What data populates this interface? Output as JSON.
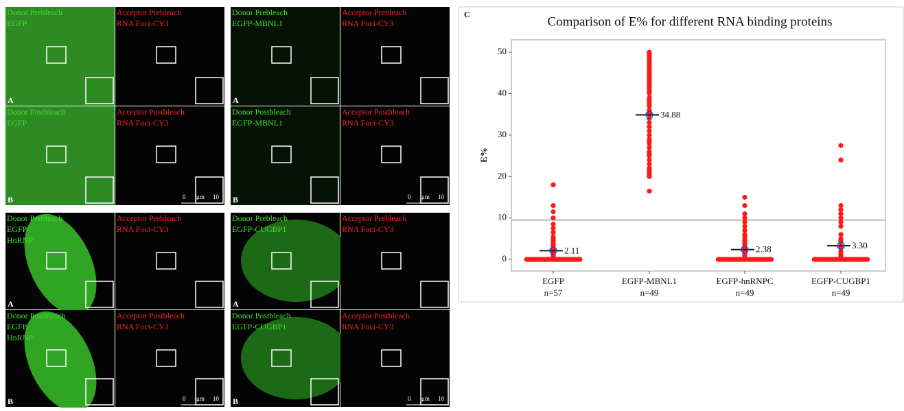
{
  "figure": {
    "panels": [
      {
        "cells": [
          {
            "lines": [
              "Donor Prebleach",
              "EGFP"
            ],
            "letter": "A"
          },
          {
            "lines": [
              "Acceptor Prebleach",
              "RNA Foci-CY3"
            ]
          },
          {
            "lines": [
              "Donor Postbleach",
              "EGFP"
            ],
            "letter": "B"
          },
          {
            "lines": [
              "Acceptor Postbleach",
              "RNA Foci-CY3"
            ],
            "scale": [
              "0",
              "μm",
              "10"
            ]
          }
        ]
      },
      {
        "cells": [
          {
            "lines": [
              "Donor Prebleach",
              "EGFP-MBNL1"
            ],
            "letter": "A"
          },
          {
            "lines": [
              "Acceptor Prebleach",
              "RNA Foci-CY3"
            ]
          },
          {
            "lines": [
              "Donor Postbleach",
              "EGFP-MBNL1"
            ],
            "letter": "B"
          },
          {
            "lines": [
              "Acceptor Postbleach",
              "RNA Foci-CY3"
            ],
            "scale": [
              "0",
              "μm",
              "10"
            ]
          }
        ]
      },
      {
        "cells": [
          {
            "lines": [
              "Donor Prebleach",
              "EGFP-",
              "HnRNP"
            ],
            "letter": "A"
          },
          {
            "lines": [
              "Acceptor Prebleach",
              "RNA Foci-CY3"
            ]
          },
          {
            "lines": [
              "Donor Postbleach",
              "EGFP-",
              "HnRNP"
            ],
            "letter": "B"
          },
          {
            "lines": [
              "Acceptor Postbleach",
              "RNA Foci-CY3"
            ],
            "scale": [
              "0",
              "μm",
              "10"
            ]
          }
        ]
      },
      {
        "cells": [
          {
            "lines": [
              "Donor Prebleach",
              "EGFP-CUGBP1"
            ],
            "letter": "A"
          },
          {
            "lines": [
              "Acceptor Prebleach",
              "RNA Foci-CY3"
            ]
          },
          {
            "lines": [
              "Donor Postbleach",
              "EGFP-CUGBP1"
            ],
            "letter": "B"
          },
          {
            "lines": [
              "Acceptor Postbleach",
              "RNA Foci-CY3"
            ],
            "scale": [
              "0",
              "μm",
              "10"
            ]
          }
        ]
      }
    ]
  },
  "chart_data": {
    "type": "dot",
    "panel_letter": "C",
    "title": "Comparison of E% for different RNA binding proteins",
    "y_label": "E%",
    "categories": [
      "EGFP",
      "EGFP-MBNL1",
      "EGFP-hnRNPC",
      "EGFP-CUGBP1"
    ],
    "n_labels": [
      "n=57",
      "n=49",
      "n=49",
      "n=49"
    ],
    "points": [
      [
        0,
        0,
        0,
        0,
        0,
        0,
        0,
        0,
        0,
        0,
        0,
        0,
        0,
        0,
        0,
        0,
        0,
        0,
        0,
        0,
        0,
        0,
        0,
        0,
        0,
        0,
        0,
        0,
        0,
        0,
        0,
        0,
        0,
        0,
        0,
        0.5,
        0.8,
        1,
        1.3,
        1.6,
        2,
        2.3,
        2.6,
        3,
        3.3,
        3.6,
        4,
        4.5,
        5,
        5.5,
        6.5,
        7.5,
        8.5,
        10,
        11.5,
        13,
        18
      ],
      [
        16.5,
        20,
        20.5,
        21,
        21.5,
        22,
        23,
        24,
        25,
        25.5,
        26,
        27,
        28,
        28.5,
        29,
        30,
        31,
        32,
        33,
        34,
        35,
        35.5,
        36,
        37,
        37.5,
        38,
        38.5,
        39,
        40,
        40.5,
        41,
        41.5,
        42,
        42.5,
        43,
        43.5,
        44,
        44.5,
        45,
        45.5,
        46,
        46.5,
        47,
        47.5,
        48,
        48.5,
        49,
        49.5,
        50
      ],
      [
        0,
        0,
        0,
        0,
        0,
        0,
        0,
        0,
        0,
        0,
        0,
        0,
        0,
        0,
        0,
        0,
        0,
        0,
        0,
        0,
        0,
        0,
        0,
        0,
        0,
        0,
        0,
        0,
        0,
        0,
        0.5,
        1,
        1.5,
        2,
        2.5,
        3,
        3.5,
        4,
        4.5,
        5,
        5.5,
        6,
        7,
        8,
        9,
        10,
        11,
        13,
        15
      ],
      [
        0,
        0,
        0,
        0,
        0,
        0,
        0,
        0,
        0,
        0,
        0,
        0,
        0,
        0,
        0,
        0,
        0,
        0,
        0,
        0,
        0,
        0,
        0,
        0,
        0,
        0,
        0,
        0,
        0,
        0,
        0,
        0,
        0.5,
        1,
        1.5,
        2,
        3,
        4,
        4.5,
        5,
        6,
        8,
        9,
        10,
        11,
        12,
        13,
        24,
        27.5
      ]
    ],
    "means": [
      2.11,
      34.88,
      2.38,
      3.3
    ],
    "value_labels": [
      "2.11",
      "34.88",
      "2.38",
      "3.30"
    ],
    "reference_line": 9.5,
    "point_color": "#ff1a1a",
    "mean_color": "#3344cc",
    "ylim": [
      -2.8,
      53
    ],
    "yticks": [
      0,
      10,
      20,
      30,
      40,
      50
    ]
  }
}
